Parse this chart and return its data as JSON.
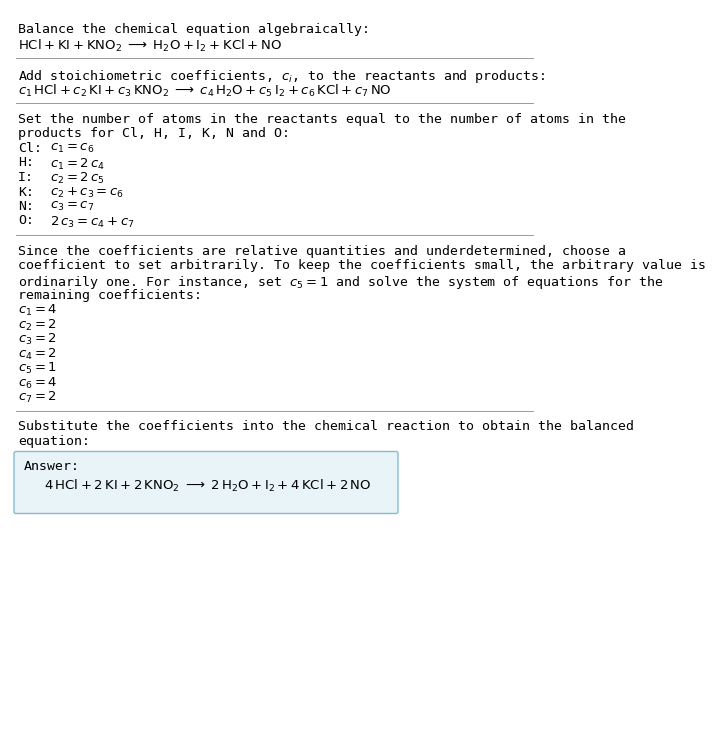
{
  "bg_color": "#ffffff",
  "text_color": "#000000",
  "section1_title": "Balance the chemical equation algebraically:",
  "section2_title": "Add stoichiometric coefficients, $c_i$, to the reactants and products:",
  "section3_title_l1": "Set the number of atoms in the reactants equal to the number of atoms in the",
  "section3_title_l2": "products for Cl, H, I, K, N and O:",
  "section3_atoms": [
    "Cl:",
    "H:",
    "I:",
    "K:",
    "N:",
    "O:"
  ],
  "section3_eqs": [
    "$c_1 = c_6$",
    "$c_1 = 2\\,c_4$",
    "$c_2 = 2\\,c_5$",
    "$c_2 + c_3 = c_6$",
    "$c_3 = c_7$",
    "$2\\,c_3 = c_4 + c_7$"
  ],
  "section4_l1": "Since the coefficients are relative quantities and underdetermined, choose a",
  "section4_l2": "coefficient to set arbitrarily. To keep the coefficients small, the arbitrary value is",
  "section4_l3": "ordinarily one. For instance, set $c_5 = 1$ and solve the system of equations for the",
  "section4_l4": "remaining coefficients:",
  "section4_values": [
    "$c_1 = 4$",
    "$c_2 = 2$",
    "$c_3 = 2$",
    "$c_4 = 2$",
    "$c_5 = 1$",
    "$c_6 = 4$",
    "$c_7 = 2$"
  ],
  "section5_l1": "Substitute the coefficients into the chemical reaction to obtain the balanced",
  "section5_l2": "equation:",
  "answer_label": "Answer:",
  "answer_box_color": "#e8f4f8",
  "answer_box_edge_color": "#88bbd0",
  "separator_color": "#999999",
  "font_size": 9.5,
  "eq_font_size": 9.5
}
